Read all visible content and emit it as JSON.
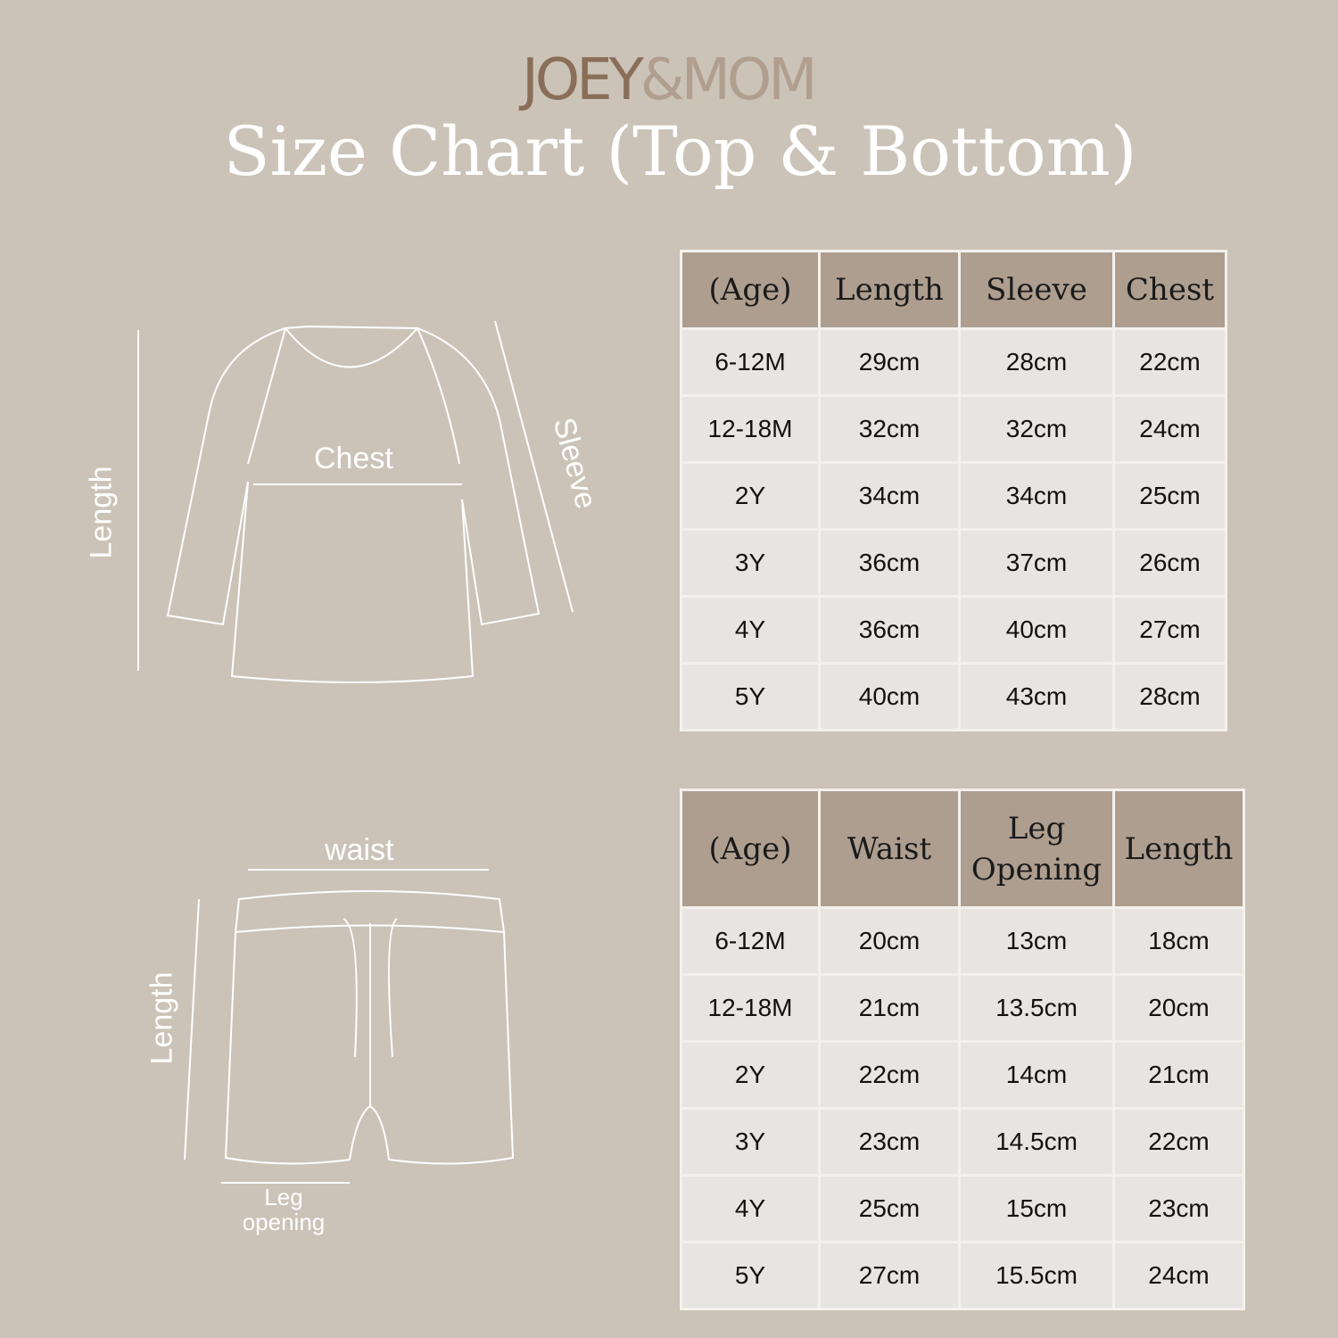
{
  "logo": {
    "part1": "JOEY",
    "part2": "&MOM",
    "colors": {
      "joey": "#8a6e58",
      "mom": "#b09e8f"
    }
  },
  "title": "Size Chart (Top & Bottom)",
  "colors": {
    "background": "#cbc3b8",
    "header": "#ae9e8f",
    "cell": "#e8e4e1"
  },
  "top_diagram": {
    "length": "Length",
    "chest": "Chest",
    "sleeve": "Sleeve"
  },
  "bottom_diagram": {
    "waist": "waist",
    "length": "Length",
    "leg_opening_1": "Leg",
    "leg_opening_2": "opening"
  },
  "top_table": {
    "headers": [
      "(Age)",
      "Length",
      "Sleeve",
      "Chest"
    ],
    "rows": [
      [
        "6-12M",
        "29cm",
        "28cm",
        "22cm"
      ],
      [
        "12-18M",
        "32cm",
        "32cm",
        "24cm"
      ],
      [
        "2Y",
        "34cm",
        "34cm",
        "25cm"
      ],
      [
        "3Y",
        "36cm",
        "37cm",
        "26cm"
      ],
      [
        "4Y",
        "36cm",
        "40cm",
        "27cm"
      ],
      [
        "5Y",
        "40cm",
        "43cm",
        "28cm"
      ]
    ]
  },
  "bottom_table": {
    "headers": [
      "(Age)",
      "Waist",
      "Leg Opening",
      "Length"
    ],
    "rows": [
      [
        "6-12M",
        "20cm",
        "13cm",
        "18cm"
      ],
      [
        "12-18M",
        "21cm",
        "13.5cm",
        "20cm"
      ],
      [
        "2Y",
        "22cm",
        "14cm",
        "21cm"
      ],
      [
        "3Y",
        "23cm",
        "14.5cm",
        "22cm"
      ],
      [
        "4Y",
        "25cm",
        "15cm",
        "23cm"
      ],
      [
        "5Y",
        "27cm",
        "15.5cm",
        "24cm"
      ]
    ]
  }
}
